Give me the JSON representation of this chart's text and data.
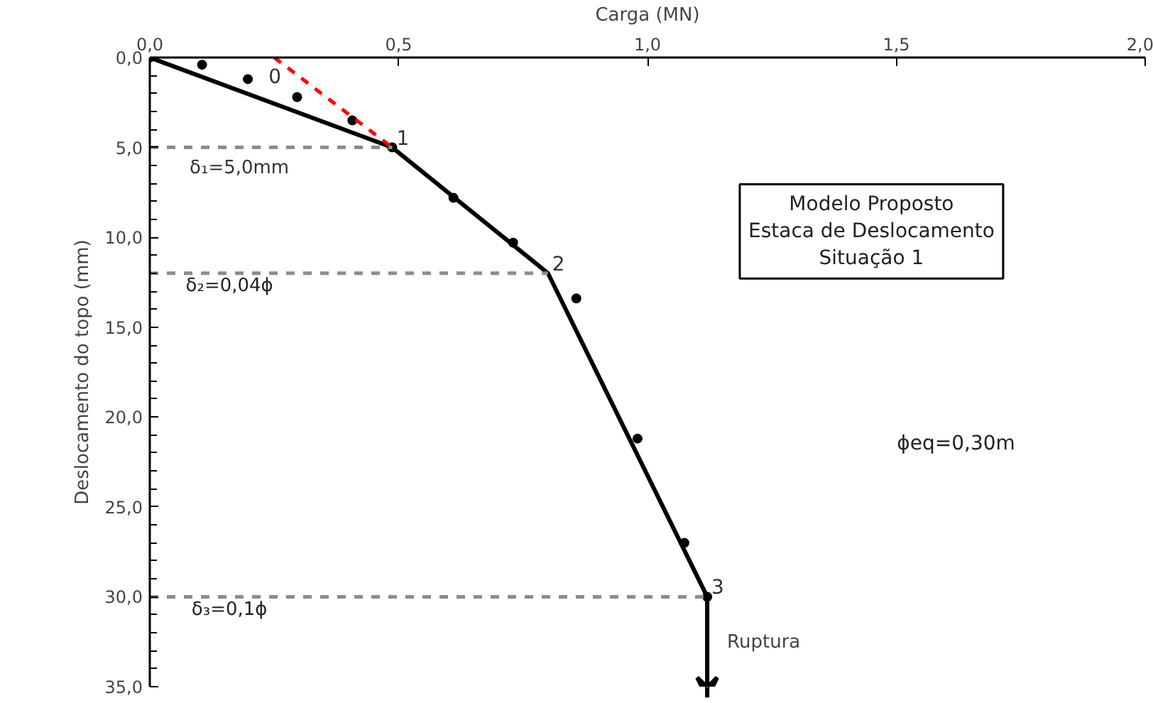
{
  "chart_data": {
    "type": "line",
    "xlabel": "Carga (MN)",
    "ylabel": "Deslocamento do topo (mm)",
    "xlim": [
      0,
      2
    ],
    "ylim": [
      35,
      0
    ],
    "xticks": [
      {
        "value": 0,
        "label": "0,0"
      },
      {
        "value": 0.5,
        "label": "0,5"
      },
      {
        "value": 1,
        "label": "1,0"
      },
      {
        "value": 1.5,
        "label": "1,5"
      },
      {
        "value": 2,
        "label": "2,0"
      }
    ],
    "yticks": [
      {
        "value": 0,
        "label": "0,0"
      },
      {
        "value": 5,
        "label": "5,0"
      },
      {
        "value": 10,
        "label": "10,0"
      },
      {
        "value": 15,
        "label": "15,0"
      },
      {
        "value": 20,
        "label": "20,0"
      },
      {
        "value": 25,
        "label": "25,0"
      },
      {
        "value": 30,
        "label": "30,0"
      },
      {
        "value": 35,
        "label": "35,0"
      }
    ],
    "grid": false,
    "series": [
      {
        "color": "#000000",
        "line_style": "solid",
        "marker": "none",
        "x": [
          0,
          0.487,
          0.8,
          1.12
        ],
        "values": [
          0,
          5,
          12,
          30
        ]
      },
      {
        "type": "scatter",
        "color": "#000000",
        "marker": "circle",
        "x": [
          0,
          0.105,
          0.197,
          0.296,
          0.407,
          0.487,
          0.61,
          0.73,
          0.857,
          0.98,
          1.074,
          1.12
        ],
        "values": [
          0,
          0.4,
          1.2,
          2.2,
          3.5,
          5,
          7.8,
          10.3,
          13.4,
          21.2,
          27,
          30
        ]
      },
      {
        "color": "#ff0000",
        "line_style": "dashed",
        "marker": "none",
        "x": [
          0.25,
          0.487
        ],
        "values": [
          0,
          5
        ]
      }
    ],
    "ref_lines": [
      {
        "axis": "y",
        "value": 5,
        "label": "δ₁=5,0mm",
        "color": "#8c8c8c",
        "line_style": "dashed"
      },
      {
        "axis": "y",
        "value": 12,
        "color": "#8c8c8c",
        "line_style": "dashed"
      },
      {
        "axis": "y",
        "value": 30,
        "color": "#8c8c8c",
        "line_style": "dashed"
      }
    ],
    "annotations": [
      {
        "text": "0",
        "x": 0.25,
        "y": 0
      },
      {
        "text": "1",
        "x": 0.487,
        "y": 5
      },
      {
        "text": "2",
        "x": 0.8,
        "y": 12
      },
      {
        "text": "3",
        "x": 1.12,
        "y": 30
      },
      {
        "text": "Ruptura",
        "x": 1.12,
        "y": 30
      },
      "Modelo Proposto\nEstaca de Deslocamento\nSituação 1",
      "ϕeq=0,30m",
      "δ₂=0,04ϕ",
      "δ₃=0,1ϕ"
    ]
  }
}
